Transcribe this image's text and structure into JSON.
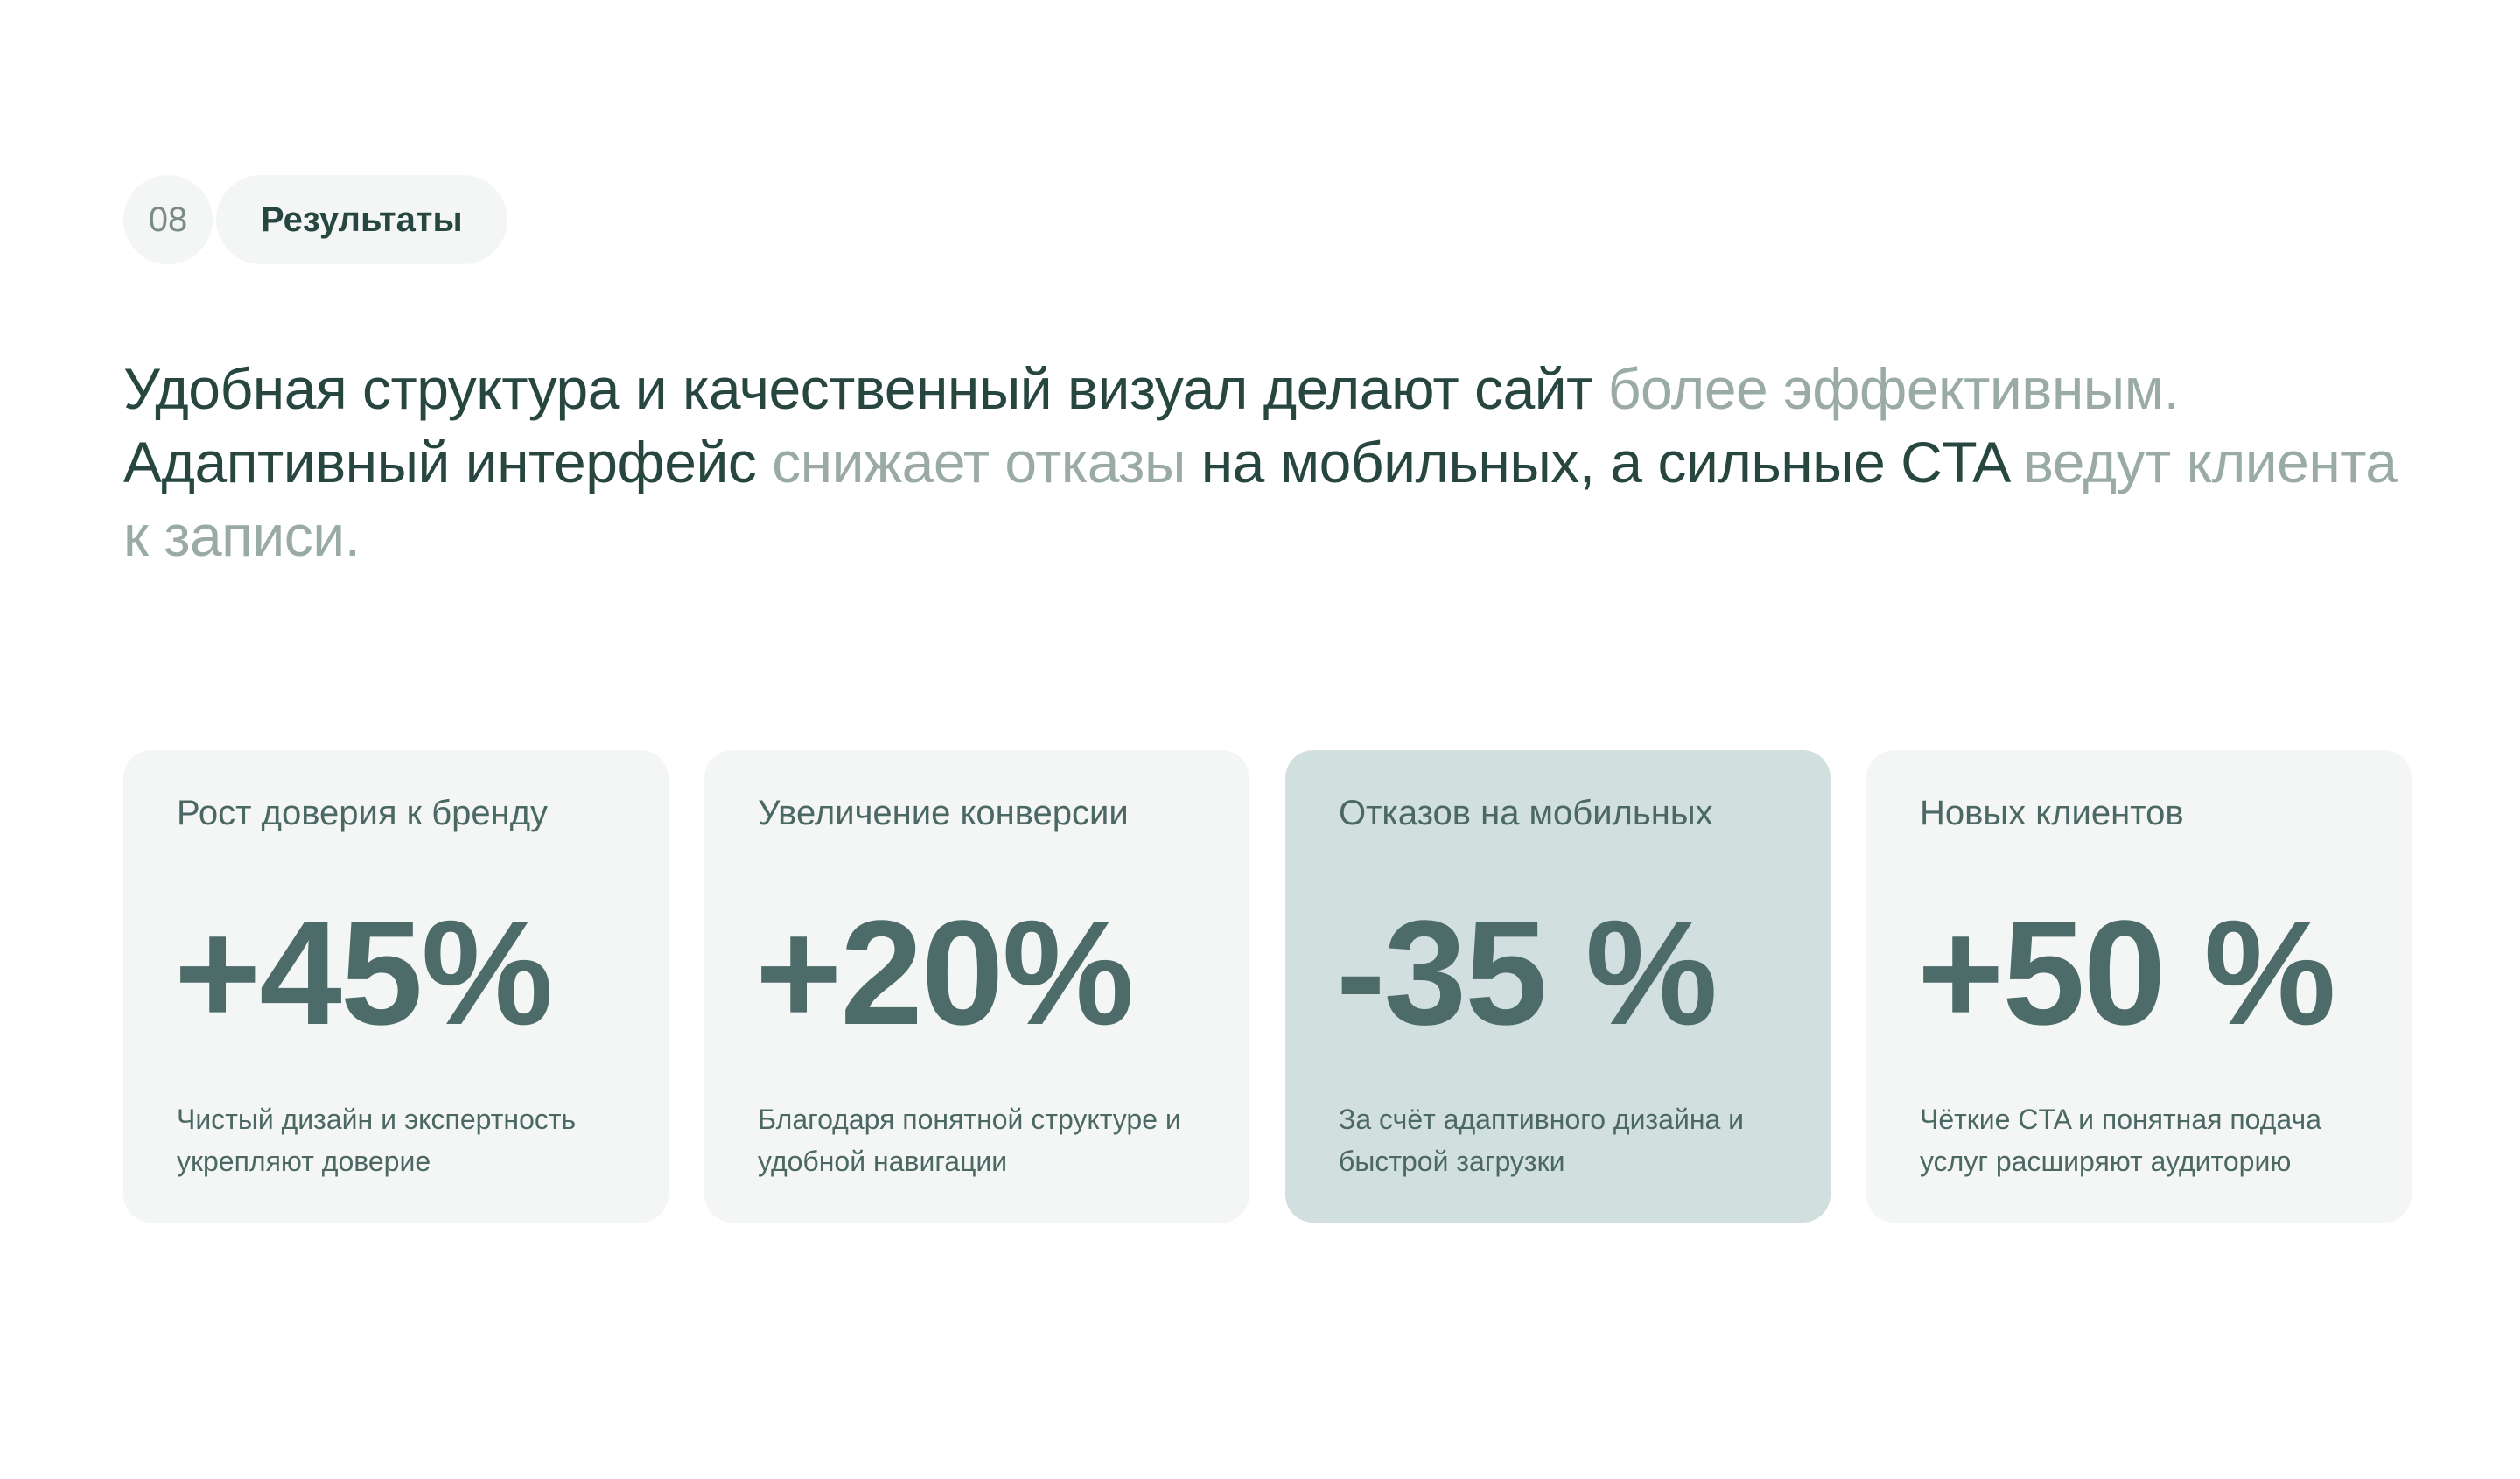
{
  "section": {
    "number": "08",
    "label": "Результаты"
  },
  "headline": {
    "part1": "Удобная структура и качественный визуал делают сайт ",
    "part2": "более эффективным.",
    "part3": " Адаптивный интерфейс ",
    "part4": "снижает отказы",
    "part5": " на мобильных, а сильные CTA ",
    "part6": "ведут клиента к записи."
  },
  "cards": [
    {
      "title": "Рост доверия к бренду",
      "value": "+45%",
      "description": "Чистый дизайн и экспертность укрепляют доверие",
      "highlighted": false
    },
    {
      "title": "Увеличение конверсии",
      "value": "+20%",
      "description": "Благодаря понятной структуре и удобной навигации",
      "highlighted": false
    },
    {
      "title": "Отказов на мобильных",
      "value": "-35 %",
      "description": "За счёт адаптивного дизайна и быстрой загрузки",
      "highlighted": true
    },
    {
      "title": "Новых клиентов",
      "value": "+50 %",
      "description": "Чёткие CTA и понятная подача услуг расширяют аудиторию",
      "highlighted": false
    }
  ],
  "colors": {
    "text_dark": "#27463f",
    "text_muted": "#9aaaa5",
    "card_bg": "#f3f6f5",
    "card_highlight_bg": "#d1dfde",
    "value_color": "#4c6b69"
  }
}
